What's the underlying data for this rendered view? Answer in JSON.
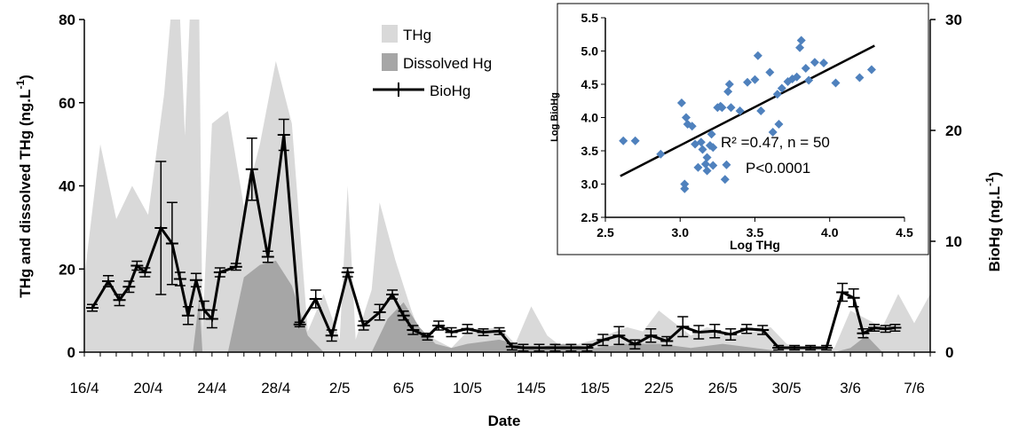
{
  "chart_data": [
    {
      "type": "area",
      "xlabel": "Date",
      "ylabel_left": "THg and dissolved THg (ng.L",
      "ylabel_left_sup": "-1",
      "ylabel_left_end": ")",
      "ylabel_right": "BioHg (ng.L",
      "ylabel_right_sup": "-1",
      "ylabel_right_end": ")",
      "xlim": [
        16,
        69
      ],
      "ylim_left": [
        0,
        80
      ],
      "ylim_right": [
        0,
        30
      ],
      "yticks_left": [
        "0",
        "20",
        "40",
        "60",
        "80"
      ],
      "yticks_right": [
        "0",
        "10",
        "20",
        "30"
      ],
      "xticks": [
        {
          "day": 16,
          "label": "16/4"
        },
        {
          "day": 20,
          "label": "20/4"
        },
        {
          "day": 24,
          "label": "24/4"
        },
        {
          "day": 28,
          "label": "28/4"
        },
        {
          "day": 32,
          "label": "2/5"
        },
        {
          "day": 36,
          "label": "6/5"
        },
        {
          "day": 40,
          "label": "10/5"
        },
        {
          "day": 44,
          "label": "14/5"
        },
        {
          "day": 48,
          "label": "18/5"
        },
        {
          "day": 52,
          "label": "22/5"
        },
        {
          "day": 56,
          "label": "26/5"
        },
        {
          "day": 60,
          "label": "30/5"
        },
        {
          "day": 64,
          "label": "3/6"
        },
        {
          "day": 68,
          "label": "7/6"
        }
      ],
      "legend": {
        "position": "top-center",
        "entries": [
          "THg",
          "Dissolved Hg",
          "BioHg"
        ]
      },
      "colors": {
        "THg": "#d9d9d9",
        "Dissolved Hg": "#a6a6a6",
        "BioHg": "#000000"
      },
      "series": [
        {
          "name": "THg",
          "type": "area",
          "axis": "left",
          "points": [
            [
              16,
              18
            ],
            [
              17,
              50
            ],
            [
              18,
              32
            ],
            [
              19,
              40
            ],
            [
              20,
              33
            ],
            [
              21,
              62
            ],
            [
              21.4,
              80
            ],
            [
              22,
              80
            ],
            [
              22.3,
              52
            ],
            [
              22.6,
              80
            ],
            [
              23.2,
              80
            ],
            [
              23.4,
              5
            ],
            [
              24,
              55
            ],
            [
              25,
              58
            ],
            [
              26,
              35
            ],
            [
              27,
              50
            ],
            [
              28,
              70
            ],
            [
              29,
              55
            ],
            [
              30,
              5
            ],
            [
              31,
              14
            ],
            [
              32,
              3
            ],
            [
              32.5,
              40
            ],
            [
              33,
              3
            ],
            [
              34,
              15
            ],
            [
              34.5,
              36
            ],
            [
              35.5,
              22
            ],
            [
              36.5,
              10
            ],
            [
              37,
              5
            ],
            [
              38,
              3
            ],
            [
              39,
              1
            ],
            [
              40,
              5
            ],
            [
              42,
              6
            ],
            [
              43,
              2
            ],
            [
              44,
              11
            ],
            [
              45,
              4
            ],
            [
              46,
              1
            ],
            [
              48,
              3
            ],
            [
              50,
              6
            ],
            [
              51,
              5
            ],
            [
              52,
              10
            ],
            [
              53,
              7
            ],
            [
              54,
              4
            ],
            [
              55,
              6
            ],
            [
              57,
              4
            ],
            [
              59,
              6
            ],
            [
              60,
              2
            ],
            [
              61,
              1
            ],
            [
              62,
              1
            ],
            [
              63,
              1
            ],
            [
              64,
              10
            ],
            [
              65,
              8
            ],
            [
              66,
              6
            ],
            [
              67,
              14
            ],
            [
              68,
              7
            ],
            [
              69,
              14
            ]
          ]
        },
        {
          "name": "Dissolved Hg",
          "type": "area",
          "axis": "left",
          "points": [
            [
              16,
              0
            ],
            [
              22.8,
              0
            ],
            [
              23.2,
              13
            ],
            [
              23.4,
              0
            ],
            [
              25,
              0
            ],
            [
              26,
              18
            ],
            [
              27,
              21
            ],
            [
              28,
              22
            ],
            [
              29,
              16
            ],
            [
              30,
              4
            ],
            [
              31,
              0
            ],
            [
              34,
              0
            ],
            [
              35,
              8
            ],
            [
              36,
              12
            ],
            [
              37,
              6
            ],
            [
              38,
              2
            ],
            [
              39,
              1
            ],
            [
              40,
              2
            ],
            [
              42,
              3
            ],
            [
              44,
              1
            ],
            [
              46,
              2
            ],
            [
              48,
              1
            ],
            [
              50,
              2
            ],
            [
              52,
              2
            ],
            [
              54,
              1
            ],
            [
              56,
              2
            ],
            [
              58,
              1
            ],
            [
              60,
              0
            ],
            [
              63,
              0
            ],
            [
              64,
              1
            ],
            [
              65,
              4
            ],
            [
              66,
              0
            ],
            [
              69,
              0
            ]
          ]
        },
        {
          "name": "BioHg",
          "type": "line",
          "axis": "right",
          "points": [
            {
              "x": 16.5,
              "y": 4.0,
              "e": 0.3
            },
            {
              "x": 17.5,
              "y": 6.4,
              "e": 0.5
            },
            {
              "x": 18.2,
              "y": 4.7,
              "e": 0.5
            },
            {
              "x": 18.8,
              "y": 5.9,
              "e": 0.5
            },
            {
              "x": 19.3,
              "y": 7.8,
              "e": 0.4
            },
            {
              "x": 19.8,
              "y": 7.2,
              "e": 0.4
            },
            {
              "x": 20.8,
              "y": 11.2,
              "e": 6.0
            },
            {
              "x": 21.5,
              "y": 9.8,
              "e": 3.7
            },
            {
              "x": 22.0,
              "y": 6.6,
              "e": 0.6
            },
            {
              "x": 22.5,
              "y": 3.3,
              "e": 0.8
            },
            {
              "x": 23.0,
              "y": 6.5,
              "e": 0.6
            },
            {
              "x": 23.5,
              "y": 3.8,
              "e": 0.8
            },
            {
              "x": 24.0,
              "y": 3.0,
              "e": 0.8
            },
            {
              "x": 24.5,
              "y": 7.2,
              "e": 0.4
            },
            {
              "x": 25.5,
              "y": 7.7,
              "e": 0.3
            },
            {
              "x": 26.5,
              "y": 16.5,
              "e": 2.8
            },
            {
              "x": 27.5,
              "y": 8.6,
              "e": 0.5
            },
            {
              "x": 28.5,
              "y": 19.6,
              "e": 1.4
            },
            {
              "x": 29.5,
              "y": 2.5,
              "e": 0.2
            },
            {
              "x": 30.5,
              "y": 4.8,
              "e": 0.8
            },
            {
              "x": 31.5,
              "y": 1.5,
              "e": 0.5
            },
            {
              "x": 32.5,
              "y": 7.2,
              "e": 0.4
            },
            {
              "x": 33.5,
              "y": 2.4,
              "e": 0.4
            },
            {
              "x": 34.5,
              "y": 3.6,
              "e": 0.7
            },
            {
              "x": 35.3,
              "y": 5.2,
              "e": 0.4
            },
            {
              "x": 36.0,
              "y": 3.3,
              "e": 0.4
            },
            {
              "x": 36.6,
              "y": 2.0,
              "e": 0.4
            },
            {
              "x": 37.5,
              "y": 1.4,
              "e": 0.3
            },
            {
              "x": 38.2,
              "y": 2.4,
              "e": 0.4
            },
            {
              "x": 39.0,
              "y": 1.8,
              "e": 0.4
            },
            {
              "x": 40.0,
              "y": 2.1,
              "e": 0.4
            },
            {
              "x": 41.0,
              "y": 1.8,
              "e": 0.3
            },
            {
              "x": 42.0,
              "y": 1.9,
              "e": 0.3
            },
            {
              "x": 42.8,
              "y": 0.5,
              "e": 0.3
            },
            {
              "x": 43.5,
              "y": 0.4,
              "e": 0.3
            },
            {
              "x": 44.5,
              "y": 0.4,
              "e": 0.3
            },
            {
              "x": 45.5,
              "y": 0.4,
              "e": 0.3
            },
            {
              "x": 46.5,
              "y": 0.4,
              "e": 0.3
            },
            {
              "x": 47.5,
              "y": 0.4,
              "e": 0.3
            },
            {
              "x": 48.5,
              "y": 1.1,
              "e": 0.5
            },
            {
              "x": 49.5,
              "y": 1.5,
              "e": 0.8
            },
            {
              "x": 50.5,
              "y": 0.7,
              "e": 0.4
            },
            {
              "x": 51.5,
              "y": 1.5,
              "e": 0.6
            },
            {
              "x": 52.5,
              "y": 1.0,
              "e": 0.4
            },
            {
              "x": 53.5,
              "y": 2.3,
              "e": 0.9
            },
            {
              "x": 54.5,
              "y": 1.8,
              "e": 0.6
            },
            {
              "x": 55.5,
              "y": 1.9,
              "e": 0.6
            },
            {
              "x": 56.5,
              "y": 1.6,
              "e": 0.5
            },
            {
              "x": 57.5,
              "y": 2.1,
              "e": 0.4
            },
            {
              "x": 58.5,
              "y": 2.0,
              "e": 0.4
            },
            {
              "x": 59.5,
              "y": 0.4,
              "e": 0.2
            },
            {
              "x": 60.5,
              "y": 0.4,
              "e": 0.2
            },
            {
              "x": 61.5,
              "y": 0.4,
              "e": 0.2
            },
            {
              "x": 62.5,
              "y": 0.4,
              "e": 0.2
            },
            {
              "x": 63.5,
              "y": 5.4,
              "e": 0.8
            },
            {
              "x": 64.2,
              "y": 4.9,
              "e": 0.8
            },
            {
              "x": 64.8,
              "y": 1.7,
              "e": 0.4
            },
            {
              "x": 65.5,
              "y": 2.2,
              "e": 0.3
            },
            {
              "x": 66.2,
              "y": 2.1,
              "e": 0.3
            },
            {
              "x": 66.8,
              "y": 2.2,
              "e": 0.3
            }
          ]
        }
      ]
    },
    {
      "type": "scatter",
      "xlabel": "Log THg",
      "ylabel": "Log BioHg",
      "xlim": [
        2.5,
        4.5
      ],
      "ylim": [
        2.5,
        5.5
      ],
      "xticks": [
        "2.5",
        "3.0",
        "3.5",
        "4.0",
        "4.5"
      ],
      "yticks": [
        "2.5",
        "3.0",
        "3.5",
        "4.0",
        "4.5",
        "5.0",
        "5.5"
      ],
      "marker_color": "#4f81bd",
      "fit_line": {
        "x": [
          2.6,
          4.3
        ],
        "y": [
          3.12,
          5.08
        ],
        "color": "#000000"
      },
      "annotations": {
        "r2": "R² =0.47, n = 50",
        "p": "P<0.0001"
      },
      "x": [
        2.62,
        2.7,
        2.87,
        3.01,
        3.03,
        3.03,
        3.04,
        3.05,
        3.08,
        3.1,
        3.12,
        3.14,
        3.15,
        3.17,
        3.18,
        3.18,
        3.2,
        3.21,
        3.22,
        3.22,
        3.25,
        3.27,
        3.28,
        3.3,
        3.31,
        3.32,
        3.33,
        3.34,
        3.4,
        3.45,
        3.5,
        3.52,
        3.54,
        3.6,
        3.62,
        3.65,
        3.66,
        3.68,
        3.72,
        3.75,
        3.78,
        3.8,
        3.81,
        3.84,
        3.86,
        3.9,
        3.96,
        4.04,
        4.2,
        4.28
      ],
      "y": [
        3.65,
        3.65,
        3.45,
        4.22,
        3.0,
        2.93,
        4.0,
        3.9,
        3.87,
        3.6,
        3.25,
        3.63,
        3.52,
        3.3,
        3.2,
        3.4,
        3.58,
        3.75,
        3.55,
        3.28,
        4.15,
        4.17,
        4.15,
        3.07,
        3.29,
        4.39,
        4.5,
        4.15,
        4.1,
        4.53,
        4.57,
        4.93,
        4.1,
        4.68,
        3.78,
        4.35,
        3.9,
        4.44,
        4.54,
        4.58,
        4.61,
        5.05,
        5.16,
        4.74,
        4.56,
        4.83,
        4.82,
        4.52,
        4.6,
        4.72
      ]
    }
  ]
}
